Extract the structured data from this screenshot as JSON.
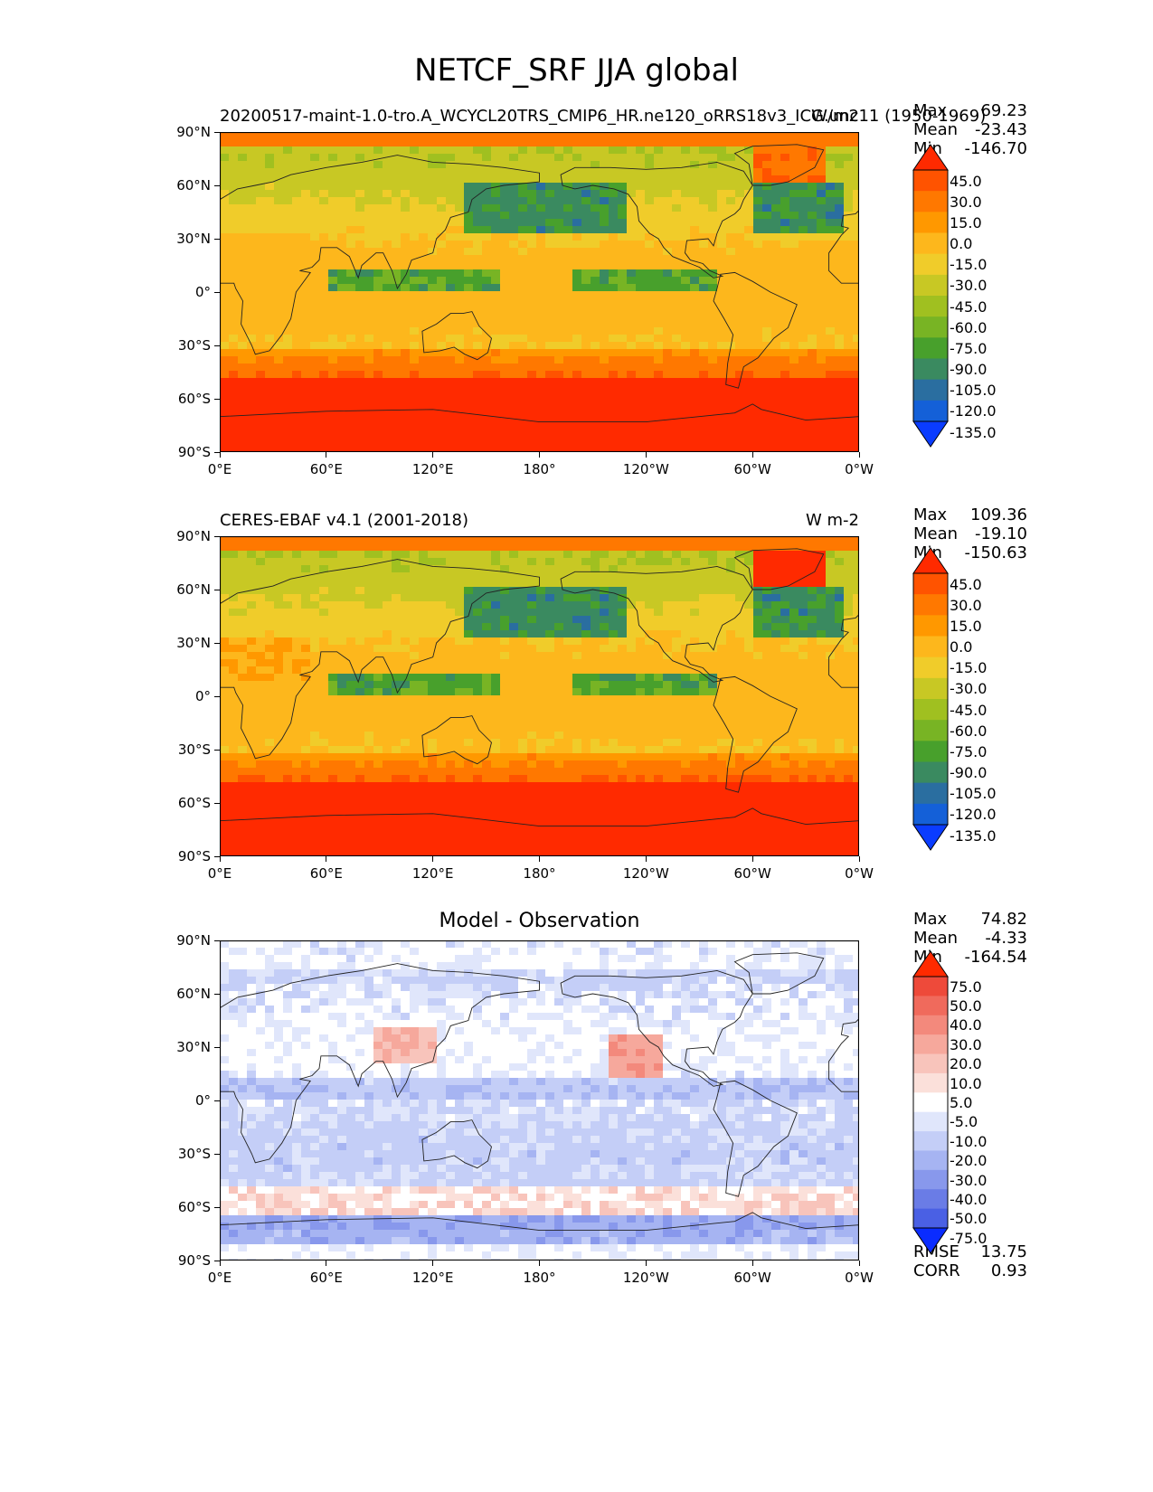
{
  "title": "NETCF_SRF JJA global",
  "chart_data": [
    {
      "type": "heatmap",
      "panel": "test",
      "title_left": "20200517-maint-1.0-tro.A_WCYCL20TRS_CMIP6_HR.ne120_oRRS18v3_ICG.unc11 (1950-1969)",
      "title_right": "W/m2",
      "stats": [
        {
          "label": "Max",
          "value": "69.23"
        },
        {
          "label": "Mean",
          "value": "-23.43"
        },
        {
          "label": "Min",
          "value": "-146.70"
        }
      ],
      "x_ticks": [
        "0°E",
        "60°E",
        "120°E",
        "180°",
        "120°W",
        "60°W",
        "0°W"
      ],
      "y_ticks": [
        "90°N",
        "60°N",
        "30°N",
        "0°",
        "30°S",
        "60°S",
        "90°S"
      ],
      "colorbar": {
        "levels": [
          "45.0",
          "30.0",
          "15.0",
          "0.0",
          "-15.0",
          "-30.0",
          "-45.0",
          "-60.0",
          "-75.0",
          "-90.0",
          "-105.0",
          "-120.0",
          "-135.0"
        ],
        "colors": [
          "#ff2a00",
          "#ff5300",
          "#ff7800",
          "#ff9800",
          "#fdb71c",
          "#f0cc2a",
          "#c8c824",
          "#a0c020",
          "#78b424",
          "#48a02c",
          "#3a8a60",
          "#2a6ea0",
          "#1460d8",
          "#0a3cff"
        ]
      }
    },
    {
      "type": "heatmap",
      "panel": "reference",
      "title_left": "CERES-EBAF v4.1 (2001-2018)",
      "title_right": "W m-2",
      "stats": [
        {
          "label": "Max",
          "value": "109.36"
        },
        {
          "label": "Mean",
          "value": "-19.10"
        },
        {
          "label": "Min",
          "value": "-150.63"
        }
      ],
      "x_ticks": [
        "0°E",
        "60°E",
        "120°E",
        "180°",
        "120°W",
        "60°W",
        "0°W"
      ],
      "y_ticks": [
        "90°N",
        "60°N",
        "30°N",
        "0°",
        "30°S",
        "60°S",
        "90°S"
      ],
      "colorbar": {
        "levels": [
          "45.0",
          "30.0",
          "15.0",
          "0.0",
          "-15.0",
          "-30.0",
          "-45.0",
          "-60.0",
          "-75.0",
          "-90.0",
          "-105.0",
          "-120.0",
          "-135.0"
        ],
        "colors": [
          "#ff2a00",
          "#ff5300",
          "#ff7800",
          "#ff9800",
          "#fdb71c",
          "#f0cc2a",
          "#c8c824",
          "#a0c020",
          "#78b424",
          "#48a02c",
          "#3a8a60",
          "#2a6ea0",
          "#1460d8",
          "#0a3cff"
        ]
      }
    },
    {
      "type": "heatmap",
      "panel": "difference",
      "title_center": "Model - Observation",
      "stats": [
        {
          "label": "Max",
          "value": "74.82"
        },
        {
          "label": "Mean",
          "value": "-4.33"
        },
        {
          "label": "Min",
          "value": "-164.54"
        }
      ],
      "bottom_stats": [
        {
          "label": "RMSE",
          "value": "13.75"
        },
        {
          "label": "CORR",
          "value": "0.93"
        }
      ],
      "x_ticks": [
        "0°E",
        "60°E",
        "120°E",
        "180°",
        "120°W",
        "60°W",
        "0°W"
      ],
      "y_ticks": [
        "90°N",
        "60°N",
        "30°N",
        "0°",
        "30°S",
        "60°S",
        "90°S"
      ],
      "colorbar": {
        "levels": [
          "75.0",
          "50.0",
          "40.0",
          "30.0",
          "20.0",
          "10.0",
          "5.0",
          "-5.0",
          "-10.0",
          "-20.0",
          "-30.0",
          "-40.0",
          "-50.0",
          "-75.0"
        ],
        "colors": [
          "#ff2a00",
          "#ee4a3a",
          "#f06a5c",
          "#f3897c",
          "#f6a89c",
          "#f8c4bb",
          "#fbe0da",
          "#ffffff",
          "#e0e6fb",
          "#c4cef7",
          "#a6b4f2",
          "#8898ec",
          "#6a7ce6",
          "#4a60e4",
          "#0a2cff"
        ]
      }
    }
  ]
}
